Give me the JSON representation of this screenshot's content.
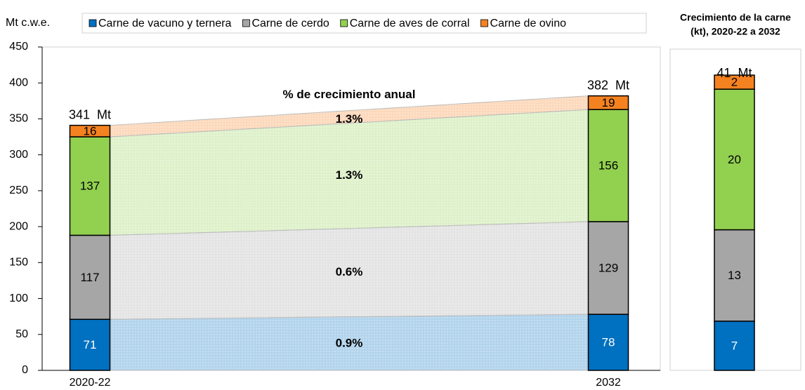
{
  "chart_data": [
    {
      "type": "stacked_bar",
      "y_label": "Mt c.w.e.",
      "categories": [
        "2020-22",
        "2032"
      ],
      "series": [
        {
          "name": "Carne de vacuno y ternera",
          "color": "#0070c0",
          "values": [
            71,
            78
          ],
          "growth_label": "0.9%"
        },
        {
          "name": "Carne de cerdo",
          "color": "#a6a6a6",
          "values": [
            117,
            129
          ],
          "growth_label": "0.6%"
        },
        {
          "name": "Carne de aves de corral",
          "color": "#92d050",
          "values": [
            137,
            156
          ],
          "growth_label": "1.3%"
        },
        {
          "name": "Carne de ovino",
          "color": "#f58220",
          "values": [
            16,
            19
          ],
          "growth_label": "1.3%"
        }
      ],
      "totals": {
        "values": [
          341,
          382
        ],
        "value_labels": [
          "341  Mt",
          "382  Mt"
        ]
      },
      "growth_title": "% de crecimiento anual",
      "ylim": [
        0,
        450
      ],
      "yticks": [
        0,
        50,
        100,
        150,
        200,
        250,
        300,
        350,
        400,
        450
      ]
    },
    {
      "type": "single_stack",
      "title": [
        "Crecimiento de la carne",
        "(kt), 2020-22 a 2032"
      ],
      "values": [
        7,
        13,
        20,
        2
      ],
      "colors": [
        "#0070c0",
        "#a6a6a6",
        "#92d050",
        "#f58220"
      ],
      "total": {
        "value": 41,
        "value_label": "41  Mt"
      },
      "ylim": [
        0,
        46
      ]
    }
  ]
}
